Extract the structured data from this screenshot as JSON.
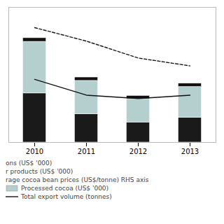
{
  "chart_data": {
    "type": "bar",
    "stacked": true,
    "categories": [
      "2010",
      "2011",
      "2012",
      "2013"
    ],
    "series": [
      {
        "color": "#1a1a1a",
        "values": [
          4000,
          2320,
          1640,
          2020
        ]
      },
      {
        "name": "Processed cocoa (US$ '000)",
        "color": "#b5cece",
        "values": [
          4200,
          2700,
          1900,
          2500
        ]
      },
      {
        "color": "#111111",
        "values": [
          300,
          280,
          260,
          280
        ]
      },
      {
        "type": "line",
        "line_style": "dashed",
        "color": "#1a1a1a",
        "axis": "y2",
        "values": [
          1020,
          900,
          750,
          680
        ]
      },
      {
        "name": "Total export volume (tonnes)",
        "type": "line",
        "line_style": "solid",
        "color": "#111111",
        "axis": "y2",
        "values": [
          560,
          420,
          390,
          420
        ]
      }
    ],
    "ylim": [
      0,
      11000
    ],
    "yticks": [],
    "y2lim": [
      0,
      1200
    ],
    "y2ticks": [],
    "tick_labels": "x",
    "grid": false,
    "legend": "bottom",
    "annotations": [
      "ons (US$ '000)",
      "r products (US$ '000)",
      "rage cocoa bean prices (US$/tonne) RHS axis"
    ]
  }
}
